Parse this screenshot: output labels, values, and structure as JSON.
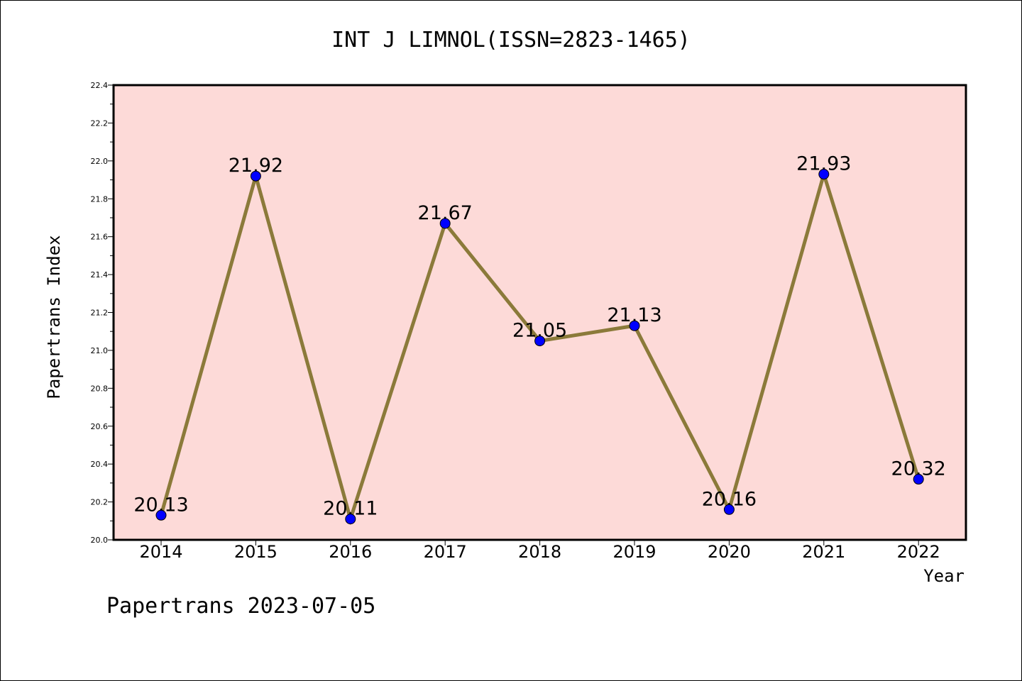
{
  "chart_data": {
    "type": "line",
    "title": "INT J LIMNOL(ISSN=2823-1465)",
    "xlabel": "Year",
    "ylabel": "Papertrans Index",
    "categories": [
      "2014",
      "2015",
      "2016",
      "2017",
      "2018",
      "2019",
      "2020",
      "2021",
      "2022"
    ],
    "series": [
      {
        "values": [
          20.13,
          21.92,
          20.11,
          21.67,
          21.05,
          21.13,
          20.16,
          21.93,
          20.32
        ],
        "data_labels": [
          "20.13",
          "21.92",
          "20.11",
          "21.67",
          "21.05",
          "21.13",
          "20.16",
          "21.93",
          "20.32"
        ]
      }
    ],
    "ylim": [
      20.0,
      22.4
    ],
    "yticks": [
      "20.0",
      "20.2",
      "20.4",
      "20.6",
      "20.8",
      "21.0",
      "21.2",
      "21.4",
      "21.6",
      "21.8",
      "22.0",
      "22.2",
      "22.4"
    ],
    "grid": false,
    "colors": {
      "plot_background": "#fddad8",
      "line": "#8b7a3a",
      "marker": "#0000ff"
    }
  },
  "footer": "Papertrans 2023-07-05"
}
